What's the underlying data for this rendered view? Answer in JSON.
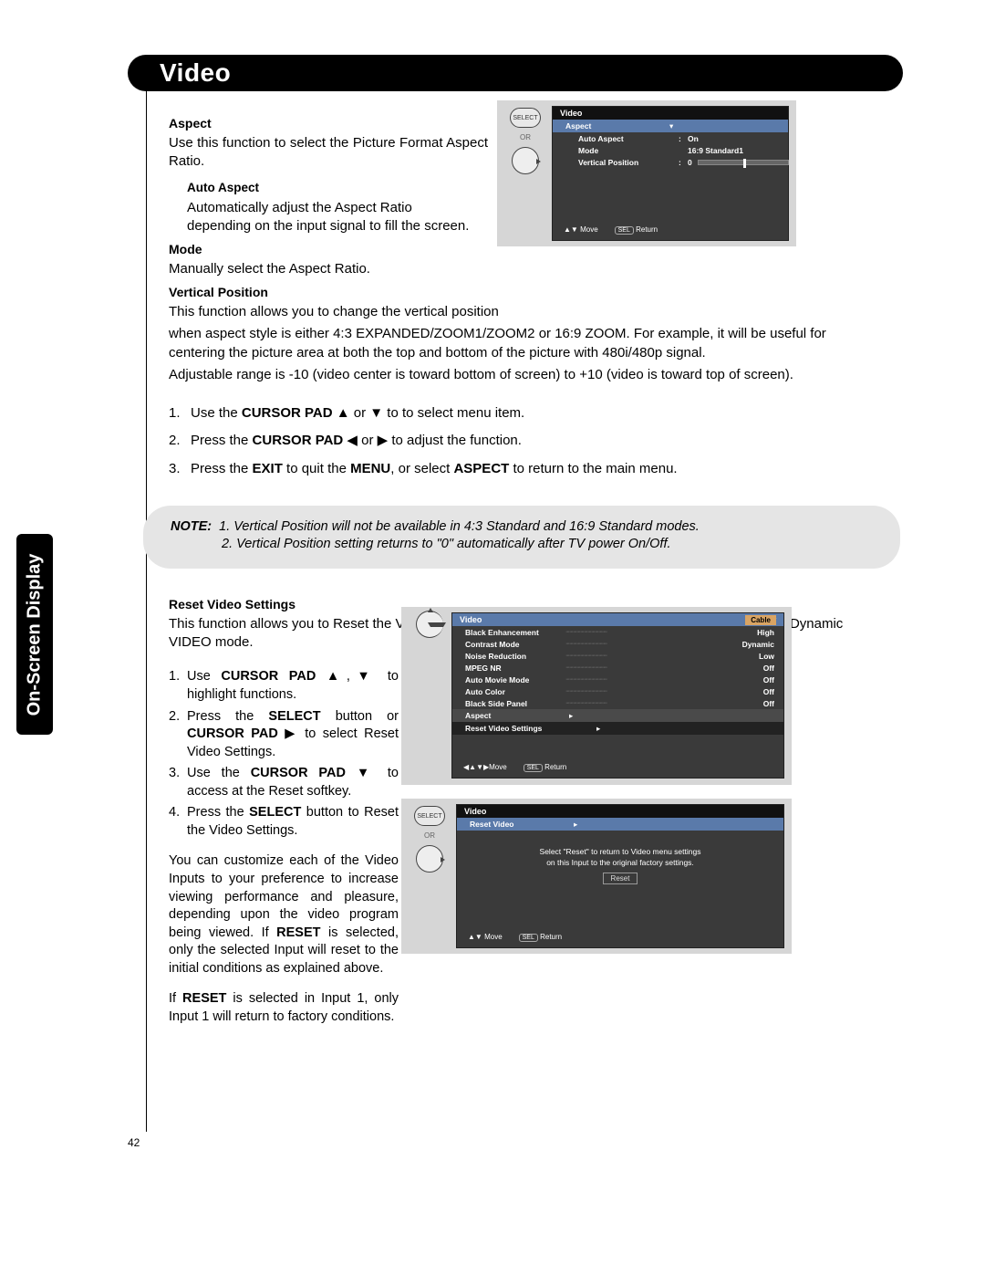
{
  "page_number": "42",
  "side_tab": "On-Screen Display",
  "title": "Video",
  "sections": {
    "aspect": {
      "heading": "Aspect",
      "text": "Use this function to select the Picture Format Aspect Ratio."
    },
    "auto_aspect": {
      "heading": "Auto Aspect",
      "text": "Automatically adjust the Aspect Ratio depending on the input signal to fill the screen."
    },
    "mode": {
      "heading": "Mode",
      "text": "Manually select the Aspect Ratio."
    },
    "vpos": {
      "heading": "Vertical Position",
      "l1": "This function allows you to change the vertical position",
      "l2": "when aspect style is either 4:3 EXPANDED/ZOOM1/ZOOM2 or 16:9 ZOOM. For example, it will be useful for centering the picture area at both the top and bottom of the picture with 480i/480p signal.",
      "l3": "Adjustable range is -10 (video center is toward bottom of screen) to +10 (video is toward top of screen)."
    },
    "steps": {
      "s1a": "Use the ",
      "s1b": "CURSOR PAD",
      "s1c": " ▲ or ▼ to to select menu item.",
      "s2a": "Press the ",
      "s2b": "CURSOR PAD",
      "s2c": " ◀ or ▶ to adjust the function.",
      "s3a": "Press the ",
      "s3b": "EXIT",
      "s3c": " to quit the ",
      "s3d": "MENU",
      "s3e": ", or select ",
      "s3f": "ASPECT",
      "s3g": " to return to the main menu."
    },
    "note": {
      "label": "NOTE:",
      "l1": "1. Vertical Position will not be available in 4:3 Standard and 16:9 Standard modes.",
      "l2": "2. Vertical Position setting returns to \"0\" automatically after TV power On/Off."
    },
    "reset_heading": "Reset Video Settings",
    "reset_intro": "This function allows you to Reset the Video Menu Settings of the present input and return it to the Day-Dynamic VIDEO mode.",
    "reset_steps": {
      "r1a": "Use ",
      "r1b": "CURSOR PAD",
      "r1c": " ▲,▼ to highlight functions.",
      "r2a": "Press the ",
      "r2b": "SELECT",
      "r2c": " button or ",
      "r2d": "CURSOR PAD",
      "r2e": " ▶ to select Reset Video Settings.",
      "r3a": "Use the ",
      "r3b": "CURSOR PAD",
      "r3c": " ▼ to access at the Reset softkey.",
      "r4a": "Press the ",
      "r4b": "SELECT",
      "r4c": " button to Reset the Video Settings."
    },
    "p1a": "You can customize each of the Video Inputs to your preference to increase viewing performance and pleasure, depending upon the video program being viewed. If ",
    "p1b": "RESET",
    "p1c": " is selected, only the selected Input will reset to the initial conditions as explained above.",
    "p2a": "If ",
    "p2b": "RESET",
    "p2c": " is selected in Input 1, only Input 1 will return to factory conditions."
  },
  "osd1": {
    "title": "Video",
    "aspect": "Aspect",
    "auto_aspect": "Auto Aspect",
    "auto_aspect_v": "On",
    "mode": "Mode",
    "mode_v": "16:9  Standard1",
    "vpos": "Vertical Position",
    "vpos_v": "0",
    "slider_pos_pct": 50,
    "foot_move": "Move",
    "foot_return": "Return",
    "foot_sel": "SEL",
    "select": "SELECT",
    "or": "OR"
  },
  "osd2": {
    "title": "Video",
    "badge": "Cable",
    "rows": [
      {
        "k": "Black Enhancement",
        "v": "High"
      },
      {
        "k": "Contrast Mode",
        "v": "Dynamic"
      },
      {
        "k": "Noise Reduction",
        "v": "Low"
      },
      {
        "k": "MPEG NR",
        "v": "Off"
      },
      {
        "k": "Auto Movie Mode",
        "v": "Off"
      },
      {
        "k": "Auto Color",
        "v": "Off"
      },
      {
        "k": "Black Side Panel",
        "v": "Off"
      }
    ],
    "aspect": "Aspect",
    "reset": "Reset Video Settings",
    "foot_move": "Move",
    "foot_sel": "SEL",
    "foot_return": "Return"
  },
  "osd3": {
    "title": "Video",
    "row": "Reset Video",
    "msg1": "Select \"Reset\" to return to Video menu settings",
    "msg2": "on this Input to the original factory settings.",
    "reset_btn": "Reset",
    "foot_move": "Move",
    "foot_sel": "SEL",
    "foot_return": "Return",
    "select": "SELECT",
    "or": "OR"
  }
}
